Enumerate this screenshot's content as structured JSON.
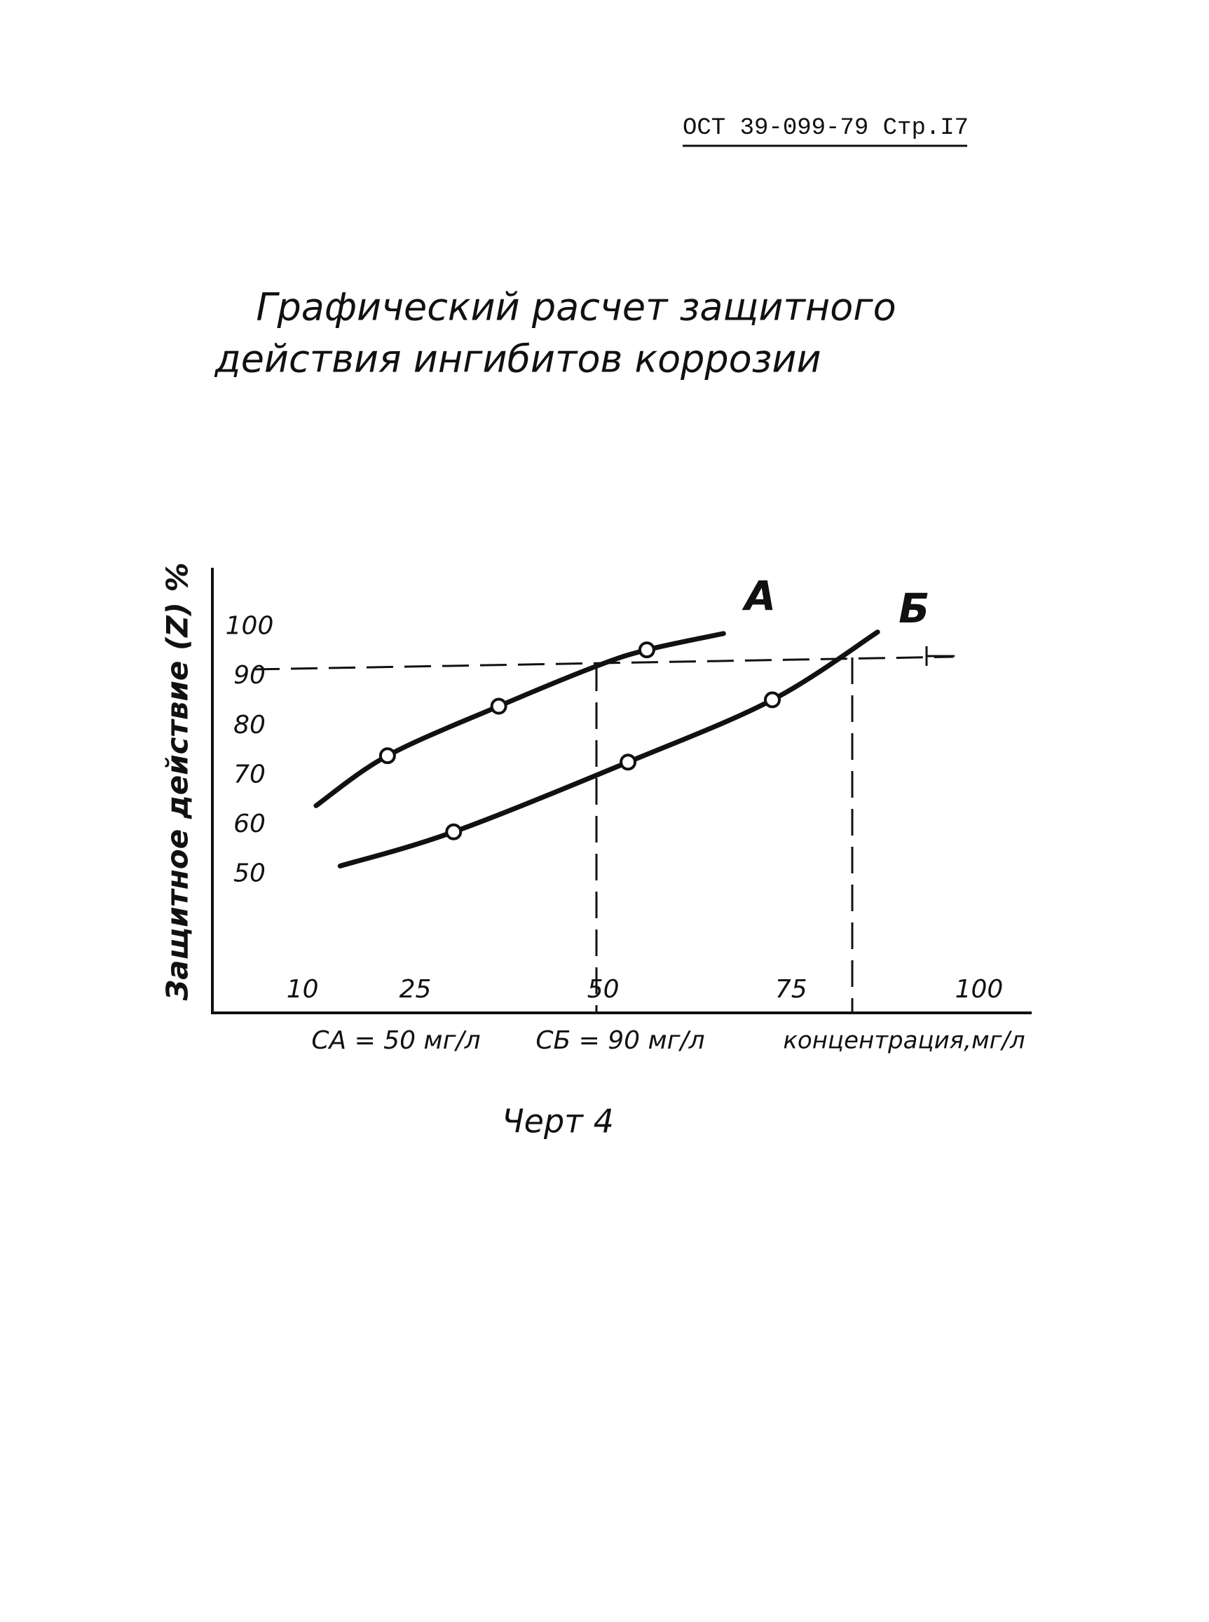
{
  "header": "ОСТ 39-099-79 Стр.I7",
  "title": [
    "Графический расчет защитного",
    "действия ингибитов коррозии"
  ],
  "chart_data": {
    "type": "line",
    "y_label": "Защитное действие (Z) %",
    "x_label": "концентрация,мг/л",
    "annotations": [
      "CА = 50 мг/л",
      "CБ = 90 мг/л"
    ],
    "xlim": [
      -2,
      107
    ],
    "xticks": [
      10,
      25,
      50,
      75,
      100
    ],
    "ylim": [
      22,
      112
    ],
    "yticks": [
      50,
      60,
      70,
      80,
      90,
      100
    ],
    "series": [
      {
        "name": "A",
        "color": "#111111",
        "x": [
          11.8,
          21.3,
          36.1,
          48.9,
          55.8,
          66
        ],
        "values": [
          63.9,
          74,
          84,
          92,
          95.4,
          98.7
        ],
        "marker_x": [
          21.3,
          36.1,
          55.8
        ],
        "marker_values": [
          74,
          84,
          95.4
        ]
      },
      {
        "name": "Б",
        "color": "#111111",
        "x": [
          15,
          30.1,
          53.3,
          72.5,
          86.5
        ],
        "values": [
          51.7,
          58.6,
          72.7,
          85.3,
          99
        ],
        "marker_x": [
          30.1,
          53.3,
          72.5
        ],
        "marker_values": [
          58.6,
          72.7,
          85.3
        ]
      }
    ]
  },
  "caption": "Черт 4"
}
